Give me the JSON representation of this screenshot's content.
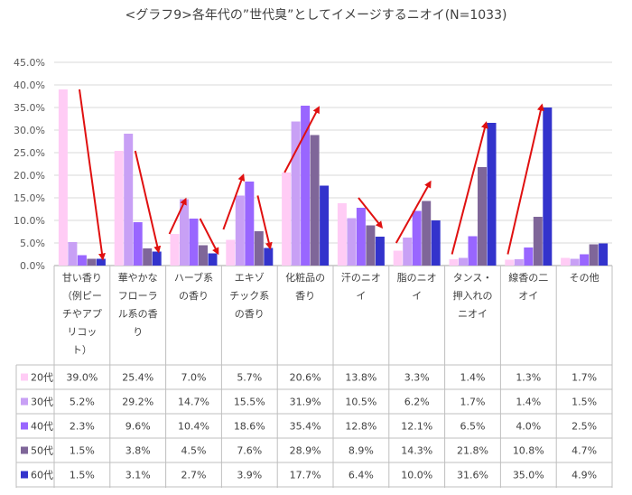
{
  "chart_data": {
    "type": "bar",
    "title": "<グラフ9>各年代の”世代臭”としてイメージするニオイ(N=1033)",
    "xlabel": "",
    "ylabel": "",
    "ylim": [
      0,
      45
    ],
    "y_ticks": [
      "0.0%",
      "5.0%",
      "10.0%",
      "15.0%",
      "20.0%",
      "25.0%",
      "30.0%",
      "35.0%",
      "40.0%",
      "45.0%"
    ],
    "gridlines": true,
    "legend": "data-table-left",
    "categories": [
      [
        "甘い香り",
        "（例ピー",
        "チやアプ",
        "リコッ",
        "ト）"
      ],
      [
        "華やかな",
        "フローラ",
        "ル系の香",
        "り"
      ],
      [
        "ハーブ系",
        "の香り"
      ],
      [
        "エキゾ",
        "チック系",
        "の香り"
      ],
      [
        "化粧品の",
        "香り"
      ],
      [
        "汗のニオ",
        "イ"
      ],
      [
        "脂のニオ",
        "イ"
      ],
      [
        "タンス・",
        "押入れの",
        "ニオイ"
      ],
      [
        "線香の二",
        "オイ"
      ],
      [
        "その他"
      ]
    ],
    "series": [
      {
        "name": "20代",
        "color": "#ffccf5",
        "values": [
          39.0,
          25.4,
          7.0,
          5.7,
          20.6,
          13.8,
          3.3,
          1.4,
          1.3,
          1.7
        ],
        "labels": [
          "39.0%",
          "25.4%",
          "7.0%",
          "5.7%",
          "20.6%",
          "13.8%",
          "3.3%",
          "1.4%",
          "1.3%",
          "1.7%"
        ]
      },
      {
        "name": "30代",
        "color": "#c8a0f5",
        "values": [
          5.2,
          29.2,
          14.7,
          15.5,
          31.9,
          10.5,
          6.2,
          1.7,
          1.4,
          1.5
        ],
        "labels": [
          "5.2%",
          "29.2%",
          "14.7%",
          "15.5%",
          "31.9%",
          "10.5%",
          "6.2%",
          "1.7%",
          "1.4%",
          "1.5%"
        ]
      },
      {
        "name": "40代",
        "color": "#9966ff",
        "values": [
          2.3,
          9.6,
          10.4,
          18.6,
          35.4,
          12.8,
          12.1,
          6.5,
          4.0,
          2.5
        ],
        "labels": [
          "2.3%",
          "9.6%",
          "10.4%",
          "18.6%",
          "35.4%",
          "12.8%",
          "12.1%",
          "6.5%",
          "4.0%",
          "2.5%"
        ]
      },
      {
        "name": "50代",
        "color": "#7f6699",
        "values": [
          1.5,
          3.8,
          4.5,
          7.6,
          28.9,
          8.9,
          14.3,
          21.8,
          10.8,
          4.7
        ],
        "labels": [
          "1.5%",
          "3.8%",
          "4.5%",
          "7.6%",
          "28.9%",
          "8.9%",
          "14.3%",
          "21.8%",
          "10.8%",
          "4.7%"
        ]
      },
      {
        "name": "60代",
        "color": "#3333cc",
        "values": [
          1.5,
          3.1,
          2.7,
          3.9,
          17.7,
          6.4,
          10.0,
          31.6,
          35.0,
          4.9
        ],
        "labels": [
          "1.5%",
          "3.1%",
          "2.7%",
          "3.9%",
          "17.7%",
          "6.4%",
          "10.0%",
          "31.6%",
          "35.0%",
          "4.9%"
        ]
      }
    ],
    "annotations": {
      "arrow_color": "#e01010",
      "arrows": [
        {
          "category": 0,
          "from": 39.0,
          "to": 1.5
        },
        {
          "category": 1,
          "from": 25.4,
          "to": 3.1
        },
        {
          "category": 2,
          "from": 7.0,
          "to": 14.7
        },
        {
          "category": 2,
          "from": 10.4,
          "to": 2.7
        },
        {
          "category": 3,
          "from": 8.0,
          "to": 20.0
        },
        {
          "category": 3,
          "from": 15.5,
          "to": 3.9
        },
        {
          "category": 4,
          "from": 20.6,
          "to": 35.0
        },
        {
          "category": 5,
          "from": 15.0,
          "to": 8.5
        },
        {
          "category": 6,
          "from": 5.0,
          "to": 18.5
        },
        {
          "category": 7,
          "from": 2.5,
          "to": 31.6
        },
        {
          "category": 8,
          "from": 2.5,
          "to": 35.5
        }
      ]
    }
  }
}
